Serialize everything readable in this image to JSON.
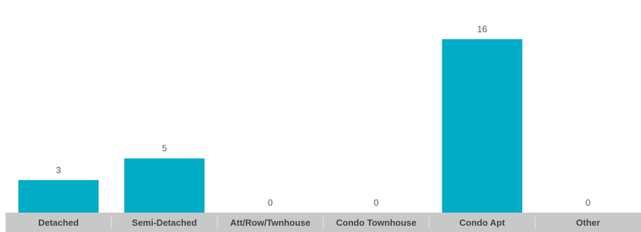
{
  "chart_data": {
    "type": "bar",
    "categories": [
      "Detached",
      "Semi-Detached",
      "Att/Row/Twnhouse",
      "Condo Townhouse",
      "Condo Apt",
      "Other"
    ],
    "values": [
      3,
      5,
      0,
      0,
      16,
      0
    ],
    "title": "",
    "xlabel": "",
    "ylabel": "",
    "ylim": [
      0,
      17.5
    ],
    "grid": false,
    "legend": "none",
    "colors": {
      "bar": "#00acc6",
      "axis_band": "#c8c8c8",
      "separator": "#e6e6e6",
      "value_label": "#555555",
      "tick_label": "#444444"
    }
  }
}
